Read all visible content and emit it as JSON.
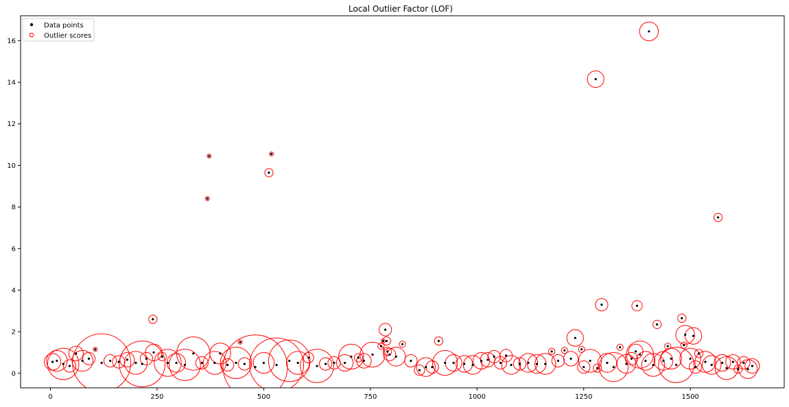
{
  "chart_data": {
    "type": "scatter",
    "title": "Local Outlier Factor (LOF)",
    "xlabel": "",
    "ylabel": "",
    "xlim": [
      -70,
      1720
    ],
    "ylim": [
      -0.7,
      17.2
    ],
    "xticks": [
      0,
      250,
      500,
      750,
      1000,
      1250,
      1500
    ],
    "xtick_labels": [
      "0",
      "250",
      "500",
      "750",
      "1000",
      "1250",
      "1500"
    ],
    "yticks": [
      0,
      2,
      4,
      6,
      8,
      10,
      12,
      14,
      16
    ],
    "ytick_labels": [
      "0",
      "2",
      "4",
      "6",
      "8",
      "10",
      "12",
      "14",
      "16"
    ],
    "grid": false,
    "legend": {
      "placement": "top-left",
      "entries": [
        "Data points",
        "Outlier scores"
      ]
    },
    "colors": {
      "data_points": "#000000",
      "outlier_scores": "#ff0000"
    },
    "series": [
      {
        "name": "Data points",
        "marker": "filled-dot",
        "points": [
          [
            5,
            0.55
          ],
          [
            15,
            0.6
          ],
          [
            30,
            0.45
          ],
          [
            45,
            0.35
          ],
          [
            60,
            0.95
          ],
          [
            75,
            0.6
          ],
          [
            90,
            0.7
          ],
          [
            105,
            1.15
          ],
          [
            120,
            0.5
          ],
          [
            140,
            0.6
          ],
          [
            160,
            0.55
          ],
          [
            180,
            0.65
          ],
          [
            200,
            0.5
          ],
          [
            215,
            0.45
          ],
          [
            225,
            0.7
          ],
          [
            240,
            2.6
          ],
          [
            242,
            1.0
          ],
          [
            262,
            0.8
          ],
          [
            275,
            0.5
          ],
          [
            295,
            0.5
          ],
          [
            315,
            0.4
          ],
          [
            335,
            0.95
          ],
          [
            355,
            0.5
          ],
          [
            368,
            8.4
          ],
          [
            372,
            10.45
          ],
          [
            385,
            0.5
          ],
          [
            398,
            0.95
          ],
          [
            415,
            0.4
          ],
          [
            435,
            0.5
          ],
          [
            445,
            1.5
          ],
          [
            455,
            0.45
          ],
          [
            480,
            0.3
          ],
          [
            500,
            0.5
          ],
          [
            512,
            9.65
          ],
          [
            518,
            10.55
          ],
          [
            530,
            0.4
          ],
          [
            560,
            0.6
          ],
          [
            580,
            0.5
          ],
          [
            605,
            0.75
          ],
          [
            625,
            0.35
          ],
          [
            645,
            0.45
          ],
          [
            665,
            0.5
          ],
          [
            690,
            0.5
          ],
          [
            705,
            0.8
          ],
          [
            722,
            0.75
          ],
          [
            735,
            0.6
          ],
          [
            755,
            0.9
          ],
          [
            775,
            1.3
          ],
          [
            780,
            1.55
          ],
          [
            785,
            2.1
          ],
          [
            788,
            1.55
          ],
          [
            790,
            1.05
          ],
          [
            795,
            0.9
          ],
          [
            810,
            0.8
          ],
          [
            825,
            1.4
          ],
          [
            845,
            0.6
          ],
          [
            865,
            0.15
          ],
          [
            880,
            0.3
          ],
          [
            895,
            0.3
          ],
          [
            910,
            1.55
          ],
          [
            925,
            0.5
          ],
          [
            945,
            0.5
          ],
          [
            970,
            0.45
          ],
          [
            990,
            0.4
          ],
          [
            1010,
            0.6
          ],
          [
            1025,
            0.65
          ],
          [
            1040,
            0.8
          ],
          [
            1055,
            0.5
          ],
          [
            1068,
            0.85
          ],
          [
            1080,
            0.4
          ],
          [
            1100,
            0.45
          ],
          [
            1120,
            0.5
          ],
          [
            1140,
            0.45
          ],
          [
            1160,
            0.45
          ],
          [
            1175,
            1.05
          ],
          [
            1190,
            0.6
          ],
          [
            1205,
            1.1
          ],
          [
            1220,
            0.7
          ],
          [
            1230,
            1.7
          ],
          [
            1245,
            1.15
          ],
          [
            1250,
            0.3
          ],
          [
            1265,
            0.6
          ],
          [
            1278,
            14.15
          ],
          [
            1282,
            0.25
          ],
          [
            1292,
            3.3
          ],
          [
            1305,
            0.5
          ],
          [
            1320,
            0.3
          ],
          [
            1335,
            1.25
          ],
          [
            1350,
            0.45
          ],
          [
            1362,
            0.7
          ],
          [
            1372,
            1.05
          ],
          [
            1375,
            3.25
          ],
          [
            1382,
            0.9
          ],
          [
            1395,
            0.6
          ],
          [
            1403,
            16.45
          ],
          [
            1413,
            0.4
          ],
          [
            1422,
            2.35
          ],
          [
            1437,
            0.6
          ],
          [
            1447,
            1.3
          ],
          [
            1455,
            0.7
          ],
          [
            1467,
            0.4
          ],
          [
            1480,
            2.65
          ],
          [
            1485,
            1.35
          ],
          [
            1488,
            1.85
          ],
          [
            1500,
            0.7
          ],
          [
            1507,
            1.8
          ],
          [
            1512,
            0.3
          ],
          [
            1520,
            0.95
          ],
          [
            1535,
            0.55
          ],
          [
            1550,
            0.4
          ],
          [
            1565,
            7.5
          ],
          [
            1575,
            0.5
          ],
          [
            1585,
            0.25
          ],
          [
            1600,
            0.55
          ],
          [
            1612,
            0.2
          ],
          [
            1625,
            0.5
          ],
          [
            1635,
            0.2
          ],
          [
            1645,
            0.35
          ]
        ]
      },
      {
        "name": "Outlier scores",
        "marker": "open-circle",
        "circles": [
          [
            5,
            0.55,
            0.4
          ],
          [
            15,
            0.6,
            0.5
          ],
          [
            30,
            0.45,
            0.75
          ],
          [
            45,
            0.35,
            0.3
          ],
          [
            60,
            0.95,
            0.35
          ],
          [
            75,
            0.6,
            0.5
          ],
          [
            90,
            0.7,
            0.3
          ],
          [
            105,
            1.15,
            0.1
          ],
          [
            120,
            0.5,
            1.4
          ],
          [
            140,
            0.6,
            0.3
          ],
          [
            160,
            0.55,
            0.3
          ],
          [
            180,
            0.65,
            0.35
          ],
          [
            200,
            0.5,
            0.55
          ],
          [
            215,
            0.45,
            1.1
          ],
          [
            225,
            0.7,
            0.3
          ],
          [
            240,
            2.6,
            0.2
          ],
          [
            242,
            1.0,
            0.4
          ],
          [
            262,
            0.8,
            0.2
          ],
          [
            275,
            0.5,
            0.65
          ],
          [
            295,
            0.5,
            0.45
          ],
          [
            315,
            0.4,
            0.75
          ],
          [
            335,
            0.95,
            0.8
          ],
          [
            355,
            0.5,
            0.3
          ],
          [
            368,
            8.4,
            0.1
          ],
          [
            372,
            10.45,
            0.1
          ],
          [
            385,
            0.5,
            0.55
          ],
          [
            398,
            0.95,
            0.5
          ],
          [
            415,
            0.4,
            0.3
          ],
          [
            435,
            0.5,
            0.75
          ],
          [
            445,
            1.5,
            0.1
          ],
          [
            455,
            0.45,
            0.3
          ],
          [
            480,
            0.3,
            1.55
          ],
          [
            500,
            0.5,
            0.5
          ],
          [
            512,
            9.65,
            0.2
          ],
          [
            518,
            10.55,
            0.1
          ],
          [
            530,
            0.4,
            1.3
          ],
          [
            560,
            0.6,
            1.0
          ],
          [
            580,
            0.5,
            0.55
          ],
          [
            605,
            0.75,
            0.25
          ],
          [
            625,
            0.35,
            0.8
          ],
          [
            645,
            0.45,
            0.3
          ],
          [
            665,
            0.5,
            0.3
          ],
          [
            690,
            0.5,
            0.4
          ],
          [
            705,
            0.8,
            0.6
          ],
          [
            722,
            0.75,
            0.2
          ],
          [
            735,
            0.6,
            0.35
          ],
          [
            755,
            0.9,
            0.6
          ],
          [
            775,
            1.3,
            0.15
          ],
          [
            780,
            1.55,
            0.1
          ],
          [
            785,
            2.1,
            0.3
          ],
          [
            788,
            1.55,
            0.2
          ],
          [
            790,
            1.05,
            0.2
          ],
          [
            795,
            0.9,
            0.3
          ],
          [
            810,
            0.8,
            0.45
          ],
          [
            825,
            1.4,
            0.15
          ],
          [
            845,
            0.6,
            0.3
          ],
          [
            865,
            0.15,
            0.25
          ],
          [
            880,
            0.3,
            0.45
          ],
          [
            895,
            0.3,
            0.3
          ],
          [
            910,
            1.55,
            0.2
          ],
          [
            925,
            0.5,
            0.6
          ],
          [
            945,
            0.5,
            0.4
          ],
          [
            970,
            0.45,
            0.4
          ],
          [
            990,
            0.4,
            0.45
          ],
          [
            1010,
            0.6,
            0.4
          ],
          [
            1025,
            0.65,
            0.35
          ],
          [
            1040,
            0.8,
            0.3
          ],
          [
            1055,
            0.5,
            0.3
          ],
          [
            1068,
            0.85,
            0.3
          ],
          [
            1080,
            0.4,
            0.45
          ],
          [
            1100,
            0.45,
            0.3
          ],
          [
            1120,
            0.5,
            0.45
          ],
          [
            1140,
            0.45,
            0.45
          ],
          [
            1160,
            0.45,
            0.5
          ],
          [
            1175,
            1.05,
            0.15
          ],
          [
            1190,
            0.6,
            0.3
          ],
          [
            1205,
            1.1,
            0.15
          ],
          [
            1220,
            0.7,
            0.35
          ],
          [
            1230,
            1.7,
            0.4
          ],
          [
            1245,
            1.15,
            0.15
          ],
          [
            1250,
            0.3,
            0.3
          ],
          [
            1265,
            0.6,
            0.55
          ],
          [
            1278,
            14.15,
            0.4
          ],
          [
            1282,
            0.25,
            0.2
          ],
          [
            1292,
            3.3,
            0.3
          ],
          [
            1305,
            0.5,
            0.45
          ],
          [
            1320,
            0.3,
            0.7
          ],
          [
            1335,
            1.25,
            0.15
          ],
          [
            1350,
            0.45,
            0.45
          ],
          [
            1362,
            0.7,
            0.3
          ],
          [
            1372,
            1.05,
            0.35
          ],
          [
            1375,
            3.25,
            0.25
          ],
          [
            1382,
            0.9,
            0.65
          ],
          [
            1395,
            0.6,
            0.45
          ],
          [
            1403,
            16.45,
            0.45
          ],
          [
            1413,
            0.4,
            0.55
          ],
          [
            1422,
            2.35,
            0.2
          ],
          [
            1437,
            0.6,
            0.45
          ],
          [
            1447,
            1.3,
            0.15
          ],
          [
            1455,
            0.7,
            0.5
          ],
          [
            1467,
            0.4,
            0.85
          ],
          [
            1480,
            2.65,
            0.2
          ],
          [
            1485,
            1.35,
            0.15
          ],
          [
            1488,
            1.85,
            0.45
          ],
          [
            1500,
            0.7,
            0.5
          ],
          [
            1507,
            1.8,
            0.4
          ],
          [
            1512,
            0.3,
            0.3
          ],
          [
            1520,
            0.95,
            0.2
          ],
          [
            1535,
            0.55,
            0.5
          ],
          [
            1550,
            0.4,
            0.45
          ],
          [
            1565,
            7.5,
            0.2
          ],
          [
            1575,
            0.5,
            0.4
          ],
          [
            1585,
            0.25,
            0.55
          ],
          [
            1600,
            0.55,
            0.35
          ],
          [
            1612,
            0.2,
            0.2
          ],
          [
            1625,
            0.5,
            0.3
          ],
          [
            1635,
            0.2,
            0.45
          ],
          [
            1645,
            0.35,
            0.35
          ]
        ]
      }
    ]
  }
}
